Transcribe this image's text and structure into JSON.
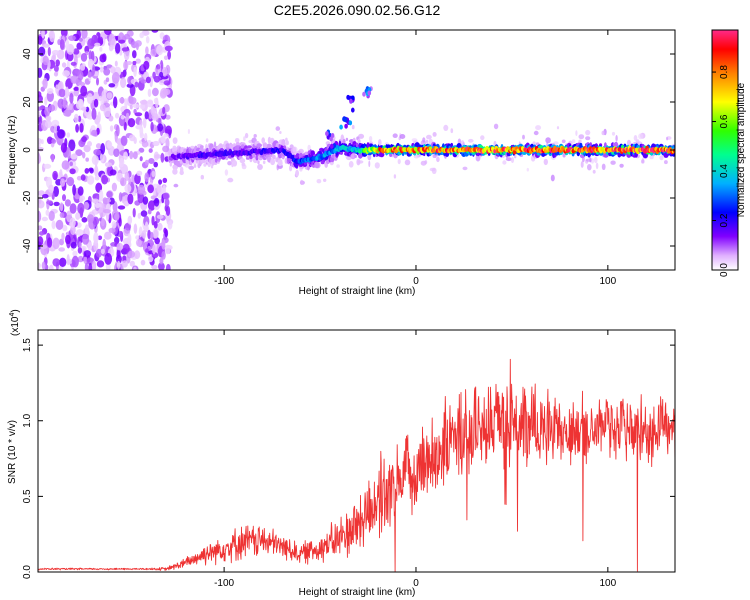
{
  "title": "C2E5.2026.090.02.56.G12",
  "chart_data": [
    {
      "type": "heatmap",
      "title": "C2E5.2026.090.02.56.G12",
      "xlabel": "Height of straight line (km)",
      "ylabel": "Frequency (Hz)",
      "xlim": [
        -197,
        135
      ],
      "ylim": [
        -50,
        50
      ],
      "xticks": [
        -100,
        0,
        100
      ],
      "yticks": [
        -40,
        -20,
        0,
        20,
        40
      ],
      "colorbar": {
        "label": "Normalized spectral amplitude",
        "range": [
          0,
          0.97
        ],
        "ticks": [
          0.0,
          0.2,
          0.4,
          0.6,
          0.8
        ],
        "tick_labels": [
          "0.0",
          "0.2",
          "0.4",
          "0.6",
          "0.8"
        ],
        "colors": [
          "#ffffff",
          "#c080ff",
          "#6000ff",
          "#0000ff",
          "#00c0ff",
          "#00ff80",
          "#40ff00",
          "#ffff00",
          "#ff8000",
          "#ff0000",
          "#ff3090"
        ]
      },
      "noise_region": {
        "x_range": [
          -197,
          -128
        ],
        "freq_range": [
          -50,
          50
        ],
        "level": "weak"
      },
      "ridge": [
        {
          "x": -128,
          "freq": -3,
          "amplitude": 0.15,
          "spread": 8
        },
        {
          "x": -110,
          "freq": -2,
          "amplitude": 0.2,
          "spread": 7
        },
        {
          "x": -90,
          "freq": -1,
          "amplitude": 0.2,
          "spread": 7
        },
        {
          "x": -70,
          "freq": 0,
          "amplitude": 0.22,
          "spread": 7
        },
        {
          "x": -62,
          "freq": -5,
          "amplitude": 0.3,
          "spread": 6
        },
        {
          "x": -50,
          "freq": -3,
          "amplitude": 0.35,
          "spread": 6
        },
        {
          "x": -40,
          "freq": 1,
          "amplitude": 0.4,
          "spread": 6
        },
        {
          "x": -30,
          "freq": 0,
          "amplitude": 0.45,
          "spread": 5
        },
        {
          "x": -20,
          "freq": 0,
          "amplitude": 0.85,
          "spread": 3
        },
        {
          "x": 0,
          "freq": 0,
          "amplitude": 0.9,
          "spread": 3
        },
        {
          "x": 50,
          "freq": 0,
          "amplitude": 0.95,
          "spread": 3
        },
        {
          "x": 100,
          "freq": 0,
          "amplitude": 0.95,
          "spread": 3
        },
        {
          "x": 135,
          "freq": 0,
          "amplitude": 0.95,
          "spread": 3
        }
      ],
      "spur": [
        {
          "x": -45,
          "freq": 5
        },
        {
          "x": -37,
          "freq": 12
        },
        {
          "x": -33,
          "freq": 20
        },
        {
          "x": -25,
          "freq": 25
        }
      ]
    },
    {
      "type": "line",
      "xlabel": "Height of straight line (km)",
      "ylabel": "SNR (10 * v/v)",
      "y_multiplier_label": "(x10",
      "y_multiplier_exponent": "4",
      "y_multiplier_close": ")",
      "xlim": [
        -197,
        135
      ],
      "ylim": [
        0,
        1.6
      ],
      "xticks": [
        -100,
        0,
        100
      ],
      "yticks": [
        0.0,
        0.5,
        1.0,
        1.5
      ],
      "ytick_labels": [
        "0.0",
        "0.5",
        "1.0",
        "1.5"
      ],
      "color": "#ee3333",
      "series": [
        {
          "name": "SNR",
          "x": [
            -197,
            -180,
            -160,
            -140,
            -130,
            -120,
            -110,
            -100,
            -90,
            -80,
            -70,
            -60,
            -50,
            -40,
            -30,
            -20,
            -10,
            0,
            10,
            20,
            30,
            40,
            50,
            60,
            70,
            80,
            90,
            100,
            110,
            120,
            135
          ],
          "values": [
            0.02,
            0.02,
            0.02,
            0.02,
            0.02,
            0.06,
            0.12,
            0.16,
            0.2,
            0.21,
            0.17,
            0.12,
            0.16,
            0.22,
            0.32,
            0.48,
            0.58,
            0.68,
            0.78,
            0.88,
            0.95,
            1.0,
            0.98,
            0.96,
            0.95,
            0.93,
            0.97,
            0.96,
            0.95,
            0.93,
            0.92
          ],
          "noise": [
            0.005,
            0.005,
            0.005,
            0.005,
            0.01,
            0.03,
            0.06,
            0.08,
            0.1,
            0.09,
            0.07,
            0.06,
            0.08,
            0.12,
            0.18,
            0.22,
            0.22,
            0.22,
            0.24,
            0.25,
            0.26,
            0.25,
            0.24,
            0.23,
            0.22,
            0.22,
            0.2,
            0.2,
            0.19,
            0.18,
            0.18
          ]
        }
      ]
    }
  ]
}
